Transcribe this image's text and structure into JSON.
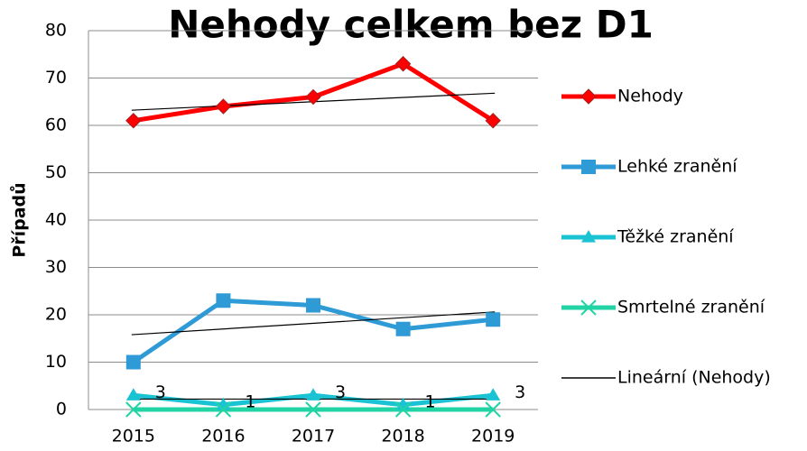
{
  "chart_data": {
    "type": "line",
    "title": "Nehody celkem bez D1",
    "y_label": "Případů",
    "categories": [
      "2015",
      "2016",
      "2017",
      "2018",
      "2019"
    ],
    "ylim": [
      0,
      80
    ],
    "yticks": [
      0,
      10,
      20,
      30,
      40,
      50,
      60,
      70,
      80
    ],
    "grid": true,
    "legend": "right",
    "series": [
      {
        "name": "Nehody",
        "color": "#ff0000",
        "marker": "diamond",
        "values": [
          61,
          64,
          66,
          73,
          61
        ]
      },
      {
        "name": "Lehké zranění",
        "color": "#2e9ad6",
        "marker": "square",
        "values": [
          10,
          23,
          22,
          17,
          19
        ]
      },
      {
        "name": "Těžké zranění",
        "color": "#19c3d3",
        "marker": "triangle",
        "values": [
          3,
          1,
          3,
          1,
          3
        ],
        "data_labels": true
      },
      {
        "name": "Smrtelné zranění",
        "color": "#22d3a4",
        "marker": "x",
        "values": [
          0,
          0,
          0,
          0,
          0
        ]
      }
    ],
    "trendlines": [
      {
        "name": "Lineární (Nehody)",
        "color": "#000000",
        "values": [
          63.2,
          66.8
        ]
      },
      {
        "color": "#000000",
        "values": [
          15.8,
          20.6
        ]
      },
      {
        "color": "#000000",
        "values": [
          2.2,
          2.2
        ]
      }
    ]
  }
}
